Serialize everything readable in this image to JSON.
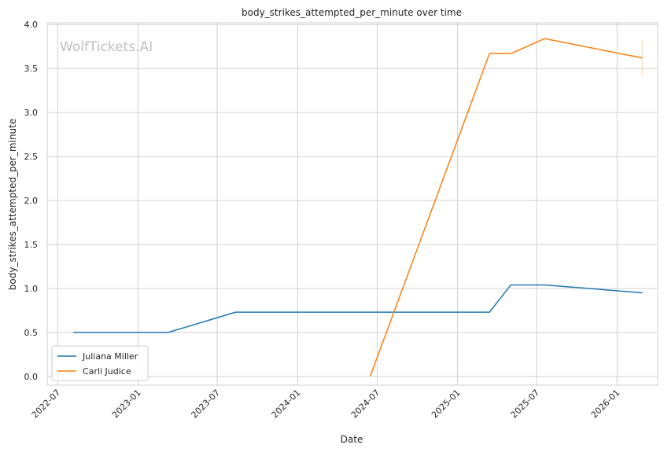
{
  "chart_data": {
    "type": "line",
    "title": "body_strikes_attempted_per_minute over time",
    "xlabel": "Date",
    "ylabel": "body_strikes_attempted_per_minute",
    "watermark": "WolfTickets.AI",
    "x_ticks": [
      "2022-07",
      "2023-01",
      "2023-07",
      "2024-01",
      "2024-07",
      "2025-01",
      "2025-07",
      "2026-01"
    ],
    "y_ticks": [
      "0.0",
      "0.5",
      "1.0",
      "1.5",
      "2.0",
      "2.5",
      "3.0",
      "3.5",
      "4.0"
    ],
    "xlim": [
      "2022-06-07",
      "2026-04-04"
    ],
    "ylim": [
      -0.1,
      4.02
    ],
    "grid": true,
    "legend_position": "lower-left",
    "series": [
      {
        "name": "Juliana Miller",
        "color": "#1f77b4",
        "points": [
          {
            "x": "2022-08-06",
            "y": 0.5
          },
          {
            "x": "2023-03-11",
            "y": 0.5
          },
          {
            "x": "2023-08-12",
            "y": 0.73
          },
          {
            "x": "2025-03-15",
            "y": 0.73
          },
          {
            "x": "2025-05-03",
            "y": 1.04
          },
          {
            "x": "2025-07-19",
            "y": 1.04
          },
          {
            "x": "2026-02-28",
            "y": 0.95
          }
        ]
      },
      {
        "name": "Carli Judice",
        "color": "#ff7f0e",
        "points": [
          {
            "x": "2024-06-15",
            "y": 0.0
          },
          {
            "x": "2025-03-15",
            "y": 3.67
          },
          {
            "x": "2025-05-03",
            "y": 3.67
          },
          {
            "x": "2025-07-19",
            "y": 3.84
          },
          {
            "x": "2026-02-28",
            "y": 3.62
          }
        ],
        "error_band": {
          "x": "2026-02-28",
          "low": 3.42,
          "high": 3.82
        }
      }
    ]
  }
}
